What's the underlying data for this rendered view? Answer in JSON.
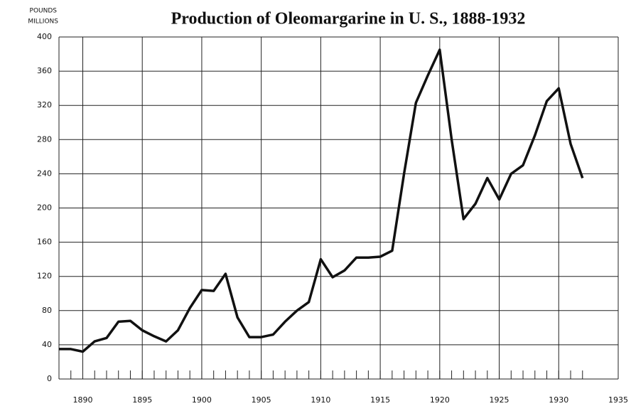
{
  "chart_data": {
    "type": "line",
    "title": "Production of Oleomargarine in U. S., 1888-1932",
    "ylabel": [
      "POUNDS",
      "MILLIONS"
    ],
    "x": [
      1888,
      1889,
      1890,
      1891,
      1892,
      1893,
      1894,
      1895,
      1896,
      1897,
      1898,
      1899,
      1900,
      1901,
      1902,
      1903,
      1904,
      1905,
      1906,
      1907,
      1908,
      1909,
      1910,
      1911,
      1912,
      1913,
      1914,
      1915,
      1916,
      1917,
      1918,
      1919,
      1920,
      1921,
      1922,
      1923,
      1924,
      1925,
      1926,
      1927,
      1928,
      1929,
      1930,
      1931,
      1932
    ],
    "values": [
      35,
      35,
      32,
      44,
      48,
      67,
      68,
      57,
      50,
      44,
      57,
      83,
      104,
      103,
      123,
      72,
      49,
      49,
      52,
      67,
      80,
      90,
      140,
      119,
      127,
      142,
      142,
      143,
      150,
      240,
      323,
      355,
      385,
      280,
      187,
      205,
      235,
      210,
      240,
      250,
      285,
      325,
      340,
      275,
      235
    ],
    "color": "#111111",
    "xlim": [
      1888,
      1935
    ],
    "ylim": [
      0,
      400
    ],
    "xticks": [
      1890,
      1895,
      1900,
      1905,
      1910,
      1915,
      1920,
      1925,
      1930,
      1935
    ],
    "yticks": [
      0,
      40,
      80,
      120,
      160,
      200,
      240,
      280,
      320,
      360,
      400
    ],
    "grid": true
  }
}
